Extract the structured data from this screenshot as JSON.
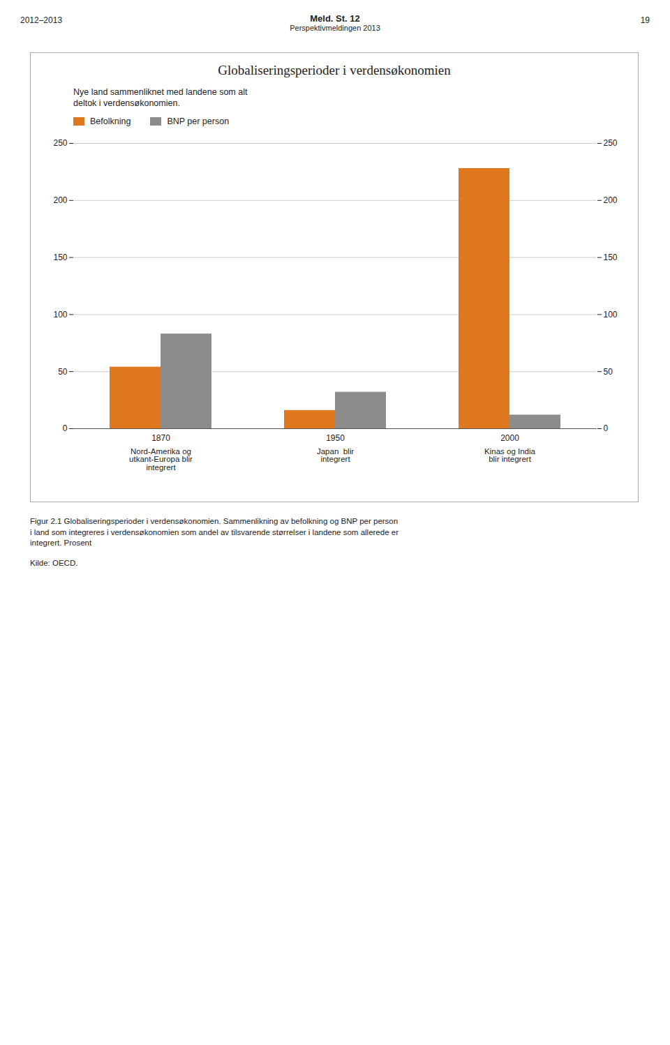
{
  "chart_data": {
    "type": "bar",
    "title": "Globaliseringsperioder i verdensøkonomien",
    "annotation": "Nye land sammenliknet med landene som alt\ndeltok i verdensøkonomien.",
    "categories": [
      "1870",
      "1950",
      "2000"
    ],
    "category_notes": [
      "Nord-Amerika og\nutkant-Europa blir\nintegrert",
      "Japan  blir\nintegrert",
      "Kinas og India\nblir integrert"
    ],
    "series": [
      {
        "name": "Befolkning",
        "color": "#E07820",
        "values": [
          54,
          16,
          228
        ]
      },
      {
        "name": "BNP per person",
        "color": "#8C8C8C",
        "values": [
          83,
          32,
          12
        ]
      }
    ],
    "ylim": [
      0,
      250
    ],
    "yticks": [
      0,
      50,
      100,
      150,
      200,
      250
    ],
    "y2lim": [
      0,
      250
    ],
    "y2ticks": [
      0,
      50,
      100,
      150,
      200,
      250
    ],
    "grid": true,
    "legend": "upper left",
    "header": [
      "2012–2013",
      "Meld. St. 12",
      "Perspektivmeldingen 2013",
      "19"
    ],
    "caption": "Figur 2.1  Globaliseringsperioder i verdensøkonomien. Sammenlikning av befolkning og BNP per person\ni land som integreres i verdensøkonomien som andel av tilsvarende størrelser i landene som allerede er\nintegrert. Prosent",
    "source": "Kilde: OECD."
  }
}
